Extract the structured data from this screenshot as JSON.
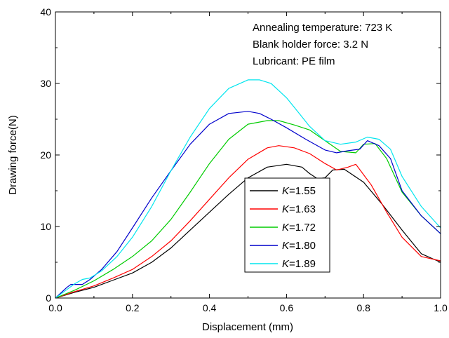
{
  "chart_data": {
    "type": "line",
    "title": "",
    "xlabel": "Displacement (mm)",
    "ylabel": "Drawing force(N)",
    "xlim": [
      0.0,
      1.0
    ],
    "ylim": [
      0,
      40
    ],
    "xticks": [
      0.0,
      0.2,
      0.4,
      0.6,
      0.8,
      1.0
    ],
    "xtick_labels": [
      "0.0",
      "0.2",
      "0.4",
      "0.6",
      "0.8",
      "1.0"
    ],
    "yticks": [
      0,
      10,
      20,
      30,
      40
    ],
    "ytick_labels": [
      "0",
      "10",
      "20",
      "30",
      "40"
    ],
    "grid": false,
    "legend_position": "center-right",
    "annotations": [
      "Annealing temperature: 723 K",
      "Blank holder force: 3.2 N",
      "Lubricant: PE film"
    ],
    "series": [
      {
        "name": "K=1.55",
        "label_symbol": "K",
        "label_value": "=1.55",
        "color": "#000000",
        "x": [
          0.0,
          0.05,
          0.1,
          0.15,
          0.2,
          0.25,
          0.3,
          0.35,
          0.4,
          0.45,
          0.5,
          0.55,
          0.6,
          0.64,
          0.66,
          0.68,
          0.7,
          0.72,
          0.75,
          0.8,
          0.85,
          0.9,
          0.95,
          1.0
        ],
        "y": [
          0,
          0.8,
          1.5,
          2.5,
          3.5,
          5.0,
          7.0,
          9.5,
          12.0,
          14.5,
          16.8,
          18.3,
          18.7,
          18.3,
          17.4,
          16.7,
          16.8,
          17.9,
          18.0,
          16.2,
          13.0,
          9.5,
          6.2,
          5.0
        ]
      },
      {
        "name": "K=1.63",
        "label_symbol": "K",
        "label_value": "=1.63",
        "color": "#ff0000",
        "x": [
          0.0,
          0.05,
          0.1,
          0.15,
          0.2,
          0.25,
          0.3,
          0.35,
          0.4,
          0.45,
          0.5,
          0.55,
          0.58,
          0.62,
          0.66,
          0.7,
          0.73,
          0.76,
          0.78,
          0.82,
          0.86,
          0.9,
          0.95,
          1.0
        ],
        "y": [
          0,
          0.9,
          1.7,
          2.8,
          4.0,
          5.8,
          8.0,
          10.8,
          13.8,
          16.8,
          19.4,
          21.0,
          21.3,
          21.0,
          20.2,
          18.8,
          17.9,
          18.3,
          18.7,
          15.8,
          12.0,
          8.5,
          5.8,
          5.2
        ]
      },
      {
        "name": "K=1.72",
        "label_symbol": "K",
        "label_value": "=1.72",
        "color": "#00cc00",
        "x": [
          0.0,
          0.05,
          0.1,
          0.15,
          0.2,
          0.25,
          0.3,
          0.35,
          0.4,
          0.45,
          0.5,
          0.55,
          0.58,
          0.62,
          0.66,
          0.7,
          0.74,
          0.78,
          0.8,
          0.83,
          0.86,
          0.9,
          0.95,
          1.0
        ],
        "y": [
          0,
          1.1,
          2.4,
          4.0,
          5.8,
          8.0,
          11.0,
          14.8,
          18.8,
          22.2,
          24.3,
          24.8,
          24.8,
          24.2,
          23.5,
          22.0,
          20.5,
          20.3,
          21.5,
          21.6,
          19.5,
          14.8,
          11.5,
          9.0
        ]
      },
      {
        "name": "K=1.80",
        "label_symbol": "K",
        "label_value": "=1.80",
        "color": "#0000cc",
        "x": [
          0.0,
          0.03,
          0.04,
          0.07,
          0.09,
          0.12,
          0.16,
          0.2,
          0.25,
          0.3,
          0.35,
          0.4,
          0.45,
          0.5,
          0.53,
          0.56,
          0.6,
          0.65,
          0.7,
          0.73,
          0.76,
          0.79,
          0.81,
          0.84,
          0.87,
          0.9,
          0.95,
          1.0
        ],
        "y": [
          0,
          1.5,
          1.9,
          1.9,
          2.6,
          4.0,
          6.5,
          9.8,
          14.0,
          17.8,
          21.5,
          24.3,
          25.8,
          26.1,
          25.8,
          25.0,
          23.8,
          22.2,
          20.7,
          20.3,
          20.6,
          20.8,
          22.0,
          21.3,
          19.5,
          15.0,
          11.5,
          9.0
        ]
      },
      {
        "name": "K=1.89",
        "label_symbol": "K",
        "label_value": "=1.89",
        "color": "#00e5ee",
        "x": [
          0.0,
          0.03,
          0.05,
          0.07,
          0.09,
          0.12,
          0.16,
          0.2,
          0.25,
          0.3,
          0.35,
          0.4,
          0.45,
          0.5,
          0.53,
          0.56,
          0.6,
          0.63,
          0.66,
          0.7,
          0.74,
          0.78,
          0.81,
          0.84,
          0.87,
          0.9,
          0.95,
          1.0
        ],
        "y": [
          0,
          1.2,
          2.0,
          2.6,
          2.8,
          3.8,
          5.8,
          8.5,
          12.8,
          17.8,
          22.5,
          26.5,
          29.3,
          30.5,
          30.5,
          30.0,
          28.0,
          26.0,
          24.0,
          22.0,
          21.5,
          21.8,
          22.5,
          22.2,
          20.8,
          17.0,
          12.8,
          9.8
        ]
      }
    ]
  }
}
